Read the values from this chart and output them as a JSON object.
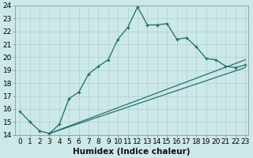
{
  "xlabel": "Humidex (Indice chaleur)",
  "bg_color": "#cce8e8",
  "line_color": "#1a6b6b",
  "xlim": [
    -0.5,
    23.3
  ],
  "ylim": [
    14,
    24
  ],
  "yticks": [
    14,
    15,
    16,
    17,
    18,
    19,
    20,
    21,
    22,
    23,
    24
  ],
  "xticks": [
    0,
    1,
    2,
    3,
    4,
    5,
    6,
    7,
    8,
    9,
    10,
    11,
    12,
    13,
    14,
    15,
    16,
    17,
    18,
    19,
    20,
    21,
    22,
    23
  ],
  "line1_x": [
    0,
    1,
    2,
    3,
    4,
    5,
    6,
    7,
    8,
    9,
    10,
    11,
    12,
    13,
    14,
    15,
    16,
    17,
    18,
    19,
    20,
    21,
    22,
    23
  ],
  "line1_y": [
    15.8,
    15.0,
    14.3,
    14.1,
    14.8,
    16.8,
    17.3,
    18.7,
    19.3,
    19.8,
    21.4,
    22.3,
    23.9,
    22.5,
    22.5,
    22.6,
    21.4,
    21.5,
    20.8,
    19.9,
    19.8,
    19.3,
    19.2,
    19.4
  ],
  "line2_x": [
    3,
    23
  ],
  "line2_y": [
    14.1,
    19.8
  ],
  "line3_x": [
    3,
    23
  ],
  "line3_y": [
    14.1,
    19.2
  ],
  "gridcolor": "#b0d0d0",
  "tick_fontsize": 6.5,
  "xlabel_fontsize": 7.5
}
